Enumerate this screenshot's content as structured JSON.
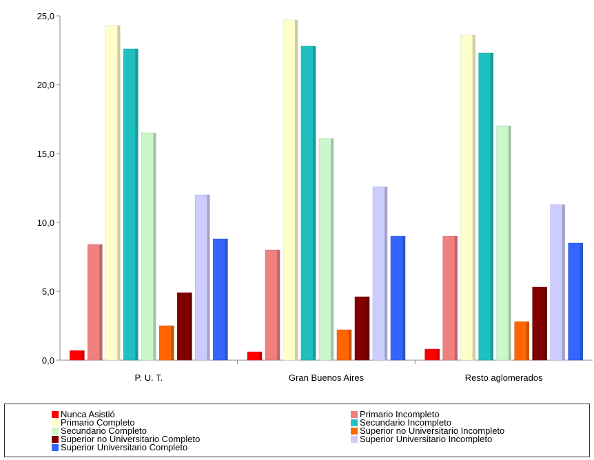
{
  "chart_data": {
    "type": "bar",
    "categories": [
      "P. U. T.",
      "Gran Buenos Aires",
      "Resto aglomerados"
    ],
    "yticks": [
      "0,0",
      "5,0",
      "10,0",
      "15,0",
      "20,0",
      "25,0"
    ],
    "ylim": [
      0,
      25
    ],
    "grid": false,
    "legend_position": "bottom",
    "series": [
      {
        "name": "Nunca Asistió",
        "color": "#ff0000",
        "values": [
          0.7,
          0.6,
          0.8
        ]
      },
      {
        "name": "Primario Incompleto",
        "color": "#f08080",
        "values": [
          8.4,
          8.0,
          9.0
        ]
      },
      {
        "name": "Primario Completo",
        "color": "#ffffcc",
        "values": [
          24.3,
          24.7,
          23.6
        ]
      },
      {
        "name": "Secundario Incompleto",
        "color": "#20c0c0",
        "values": [
          22.6,
          22.8,
          22.3
        ]
      },
      {
        "name": "Secundario Completo",
        "color": "#ccf5cc",
        "values": [
          16.5,
          16.1,
          17.0
        ]
      },
      {
        "name": "Superior no Universitario Incompleto",
        "color": "#ff6600",
        "values": [
          2.5,
          2.2,
          2.8
        ]
      },
      {
        "name": "Superior no Universitario Completo",
        "color": "#800000",
        "values": [
          4.9,
          4.6,
          5.3
        ]
      },
      {
        "name": "Superior Universitario Incompleto",
        "color": "#ccccff",
        "values": [
          12.0,
          12.6,
          11.3
        ]
      },
      {
        "name": "Superior Universitario Completo",
        "color": "#3366ff",
        "values": [
          8.8,
          9.0,
          8.5
        ]
      }
    ]
  }
}
